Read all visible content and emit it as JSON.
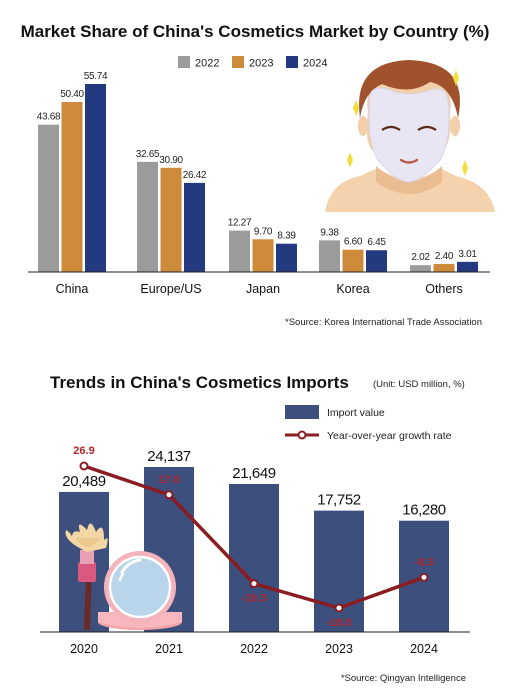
{
  "chart_data": [
    {
      "type": "bar",
      "title": "Market Share of China's Cosmetics Market by Country (%)",
      "categories": [
        "China",
        "Europe/US",
        "Japan",
        "Korea",
        "Others"
      ],
      "series": [
        {
          "name": "2022",
          "values": [
            43.68,
            32.65,
            12.27,
            9.38,
            2.02
          ],
          "value_labels": [
            "43.68",
            "32.65",
            "12.27",
            "9.38",
            "2.02"
          ]
        },
        {
          "name": "2023",
          "values": [
            50.4,
            30.9,
            9.7,
            6.6,
            2.4
          ],
          "value_labels": [
            "50.40",
            "30.90",
            "9.70",
            "6.60",
            "2.40"
          ]
        },
        {
          "name": "2024",
          "values": [
            55.74,
            26.42,
            8.39,
            6.45,
            3.01
          ],
          "value_labels": [
            "55.74",
            "26.42",
            "8.39",
            "6.45",
            "3.01"
          ]
        }
      ],
      "ylim": [
        0,
        60
      ],
      "legend_position": "top",
      "source": "*Source: Korea International Trade Association",
      "colors": {
        "2022": "#9b9b9b",
        "2023": "#cd8a3b",
        "2024": "#233a80"
      }
    },
    {
      "type": "bar",
      "title": "Trends in China's Cosmetics Imports",
      "unit_note": "(Unit: USD million, %)",
      "categories": [
        "2020",
        "2021",
        "2022",
        "2023",
        "2024"
      ],
      "series": [
        {
          "name": "Import value",
          "type": "bar",
          "values": [
            20489,
            24137,
            21649,
            17752,
            16280
          ],
          "value_labels": [
            "20,489",
            "24,137",
            "21,649",
            "17,752",
            "16,280"
          ]
        },
        {
          "name": "Year-over-year growth rate",
          "type": "line",
          "values": [
            26.9,
            17.8,
            -10.3,
            -18.0,
            -8.3
          ],
          "value_labels": [
            "26.9",
            "17.8",
            "-10.3",
            "-18.0",
            "-8.3"
          ]
        }
      ],
      "ylim": [
        0,
        26000
      ],
      "growth_range": [
        -22,
        31
      ],
      "legend_position": "top-right",
      "source": "*Source: Qingyan Intelligence",
      "colors": {
        "bar": "#3d4f7d",
        "line": "#8a1c22",
        "line_label": "#b2262c"
      }
    }
  ],
  "icons": [
    "face-mask-illustration-icon",
    "makeup-brush-icon",
    "compact-mirror-icon"
  ]
}
